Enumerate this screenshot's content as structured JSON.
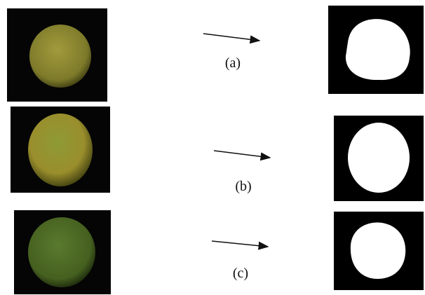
{
  "rows": [
    {
      "label": "(a)"
    },
    {
      "label": "(b)"
    },
    {
      "label": "(c)"
    }
  ]
}
